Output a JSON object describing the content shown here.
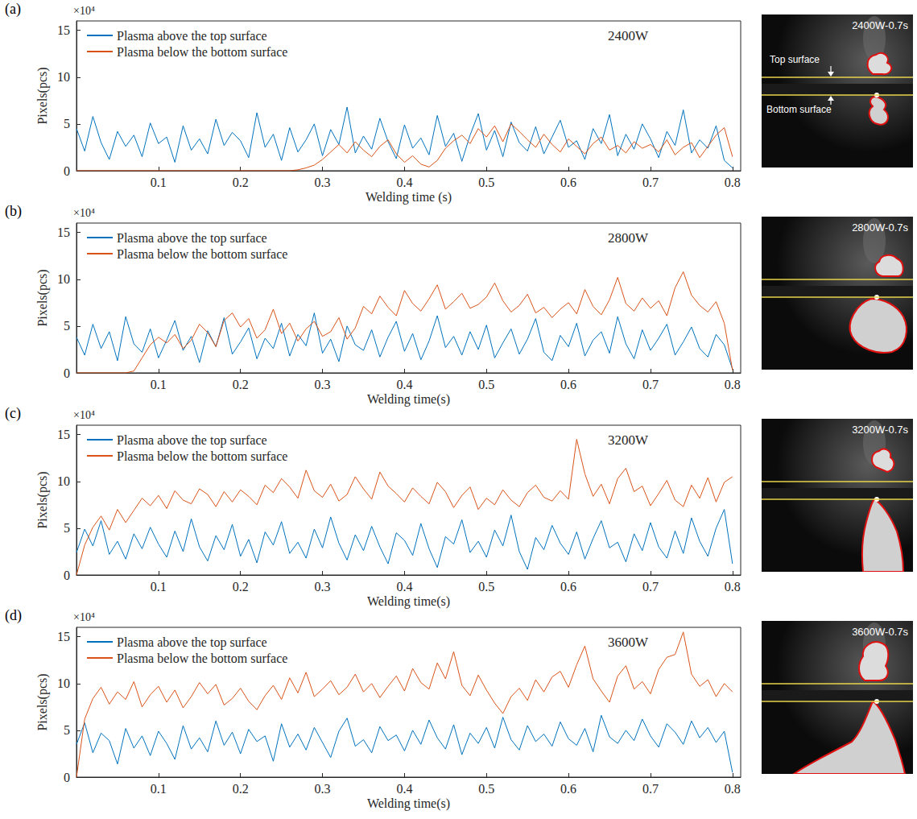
{
  "chart_data": [
    {
      "type": "line",
      "panel": "(a)",
      "annotation": "2400W",
      "y_scale_label": "×10⁴",
      "x_label": "Welding time (s)",
      "y_label": "Pixels(pcs)",
      "x": [
        0,
        0.01,
        0.02,
        0.03,
        0.04,
        0.05,
        0.06,
        0.07,
        0.08,
        0.09,
        0.1,
        0.11,
        0.12,
        0.13,
        0.14,
        0.15,
        0.16,
        0.17,
        0.18,
        0.19,
        0.2,
        0.21,
        0.22,
        0.23,
        0.24,
        0.25,
        0.26,
        0.27,
        0.28,
        0.29,
        0.3,
        0.31,
        0.32,
        0.33,
        0.34,
        0.35,
        0.36,
        0.37,
        0.38,
        0.39,
        0.4,
        0.41,
        0.42,
        0.43,
        0.44,
        0.45,
        0.46,
        0.47,
        0.48,
        0.49,
        0.5,
        0.51,
        0.52,
        0.53,
        0.54,
        0.55,
        0.56,
        0.57,
        0.58,
        0.59,
        0.6,
        0.61,
        0.62,
        0.63,
        0.64,
        0.65,
        0.66,
        0.67,
        0.68,
        0.69,
        0.7,
        0.71,
        0.72,
        0.73,
        0.74,
        0.75,
        0.76,
        0.77,
        0.78,
        0.79,
        0.8
      ],
      "series": [
        {
          "name": "Plasma above the top surface",
          "color": "#0072bd",
          "values": [
            4.5,
            2.1,
            5.8,
            3.0,
            1.2,
            4.2,
            2.6,
            3.8,
            1.5,
            5.1,
            2.9,
            3.6,
            0.9,
            4.8,
            2.2,
            3.4,
            1.8,
            5.5,
            2.7,
            4.1,
            3.2,
            1.4,
            6.2,
            2.5,
            3.9,
            1.1,
            4.6,
            2.0,
            3.3,
            5.0,
            1.6,
            4.4,
            2.8,
            6.8,
            1.9,
            3.7,
            2.3,
            5.6,
            3.1,
            1.3,
            4.9,
            2.4,
            3.5,
            1.7,
            5.9,
            2.6,
            4.0,
            1.0,
            3.8,
            6.1,
            2.2,
            4.3,
            1.5,
            5.2,
            3.0,
            2.1,
            4.7,
            1.8,
            3.6,
            5.4,
            2.5,
            3.2,
            1.2,
            4.5,
            2.9,
            6.0,
            1.6,
            3.9,
            2.3,
            5.0,
            3.4,
            1.4,
            4.2,
            2.7,
            6.5,
            1.9,
            3.3,
            2.4,
            4.8,
            1.1,
            0.3
          ]
        },
        {
          "name": "Plasma below the bottom surface",
          "color": "#d95319",
          "values": [
            0,
            0,
            0,
            0,
            0,
            0,
            0,
            0,
            0,
            0,
            0,
            0,
            0,
            0,
            0,
            0,
            0,
            0,
            0,
            0,
            0,
            0,
            0,
            0,
            0,
            0,
            0,
            0.1,
            0.3,
            0.6,
            1.2,
            2.0,
            2.8,
            1.9,
            3.1,
            2.2,
            1.5,
            2.6,
            3.3,
            1.8,
            0.9,
            1.6,
            0.7,
            0.4,
            1.1,
            2.4,
            3.2,
            3.8,
            2.9,
            4.5,
            3.6,
            4.8,
            3.1,
            5.0,
            4.2,
            3.3,
            2.5,
            3.9,
            2.8,
            2.0,
            3.4,
            2.6,
            1.8,
            2.9,
            3.6,
            2.2,
            2.7,
            1.9,
            3.1,
            2.4,
            2.8,
            2.0,
            3.3,
            1.7,
            2.5,
            3.0,
            1.4,
            2.6,
            3.8,
            4.6,
            1.5
          ]
        }
      ],
      "xlim": [
        0,
        0.81
      ],
      "xticks": [
        0.1,
        0.2,
        0.3,
        0.4,
        0.5,
        0.6,
        0.7,
        0.8
      ],
      "ylim": [
        0,
        16
      ],
      "yticks": [
        0,
        5,
        10,
        15
      ],
      "grid": false,
      "legend": "upper left",
      "photo": {
        "title": "2400W-0.7s",
        "labels": [
          "Top surface",
          "Bottom surface"
        ]
      }
    },
    {
      "type": "line",
      "panel": "(b)",
      "annotation": "2800W",
      "y_scale_label": "×10⁴",
      "x_label": "Welding time(s)",
      "y_label": "Pixels(pcs)",
      "x": [
        0,
        0.01,
        0.02,
        0.03,
        0.04,
        0.05,
        0.06,
        0.07,
        0.08,
        0.09,
        0.1,
        0.11,
        0.12,
        0.13,
        0.14,
        0.15,
        0.16,
        0.17,
        0.18,
        0.19,
        0.2,
        0.21,
        0.22,
        0.23,
        0.24,
        0.25,
        0.26,
        0.27,
        0.28,
        0.29,
        0.3,
        0.31,
        0.32,
        0.33,
        0.34,
        0.35,
        0.36,
        0.37,
        0.38,
        0.39,
        0.4,
        0.41,
        0.42,
        0.43,
        0.44,
        0.45,
        0.46,
        0.47,
        0.48,
        0.49,
        0.5,
        0.51,
        0.52,
        0.53,
        0.54,
        0.55,
        0.56,
        0.57,
        0.58,
        0.59,
        0.6,
        0.61,
        0.62,
        0.63,
        0.64,
        0.65,
        0.66,
        0.67,
        0.68,
        0.69,
        0.7,
        0.71,
        0.72,
        0.73,
        0.74,
        0.75,
        0.76,
        0.77,
        0.78,
        0.79,
        0.8
      ],
      "series": [
        {
          "name": "Plasma above the top surface",
          "color": "#0072bd",
          "values": [
            3.8,
            1.9,
            5.2,
            2.6,
            4.4,
            1.3,
            6.0,
            3.1,
            2.2,
            4.7,
            1.6,
            3.5,
            5.6,
            2.4,
            3.9,
            1.1,
            4.5,
            2.8,
            5.9,
            2.0,
            3.3,
            4.8,
            1.5,
            3.7,
            2.6,
            5.3,
            1.8,
            4.1,
            2.9,
            6.4,
            2.1,
            3.6,
            1.2,
            5.0,
            3.0,
            2.4,
            4.6,
            1.7,
            3.8,
            5.5,
            2.3,
            4.2,
            1.4,
            3.4,
            6.1,
            2.7,
            3.9,
            1.9,
            4.4,
            2.5,
            5.1,
            1.6,
            3.2,
            4.7,
            2.0,
            3.6,
            5.8,
            2.2,
            1.3,
            4.0,
            2.8,
            5.3,
            1.8,
            3.5,
            4.4,
            2.1,
            6.0,
            3.1,
            1.5,
            4.6,
            2.4,
            3.7,
            5.2,
            1.9,
            3.3,
            4.9,
            2.6,
            1.7,
            4.1,
            3.0,
            0.4
          ]
        },
        {
          "name": "Plasma below the bottom surface",
          "color": "#d95319",
          "values": [
            0,
            0,
            0,
            0,
            0,
            0,
            0,
            0.2,
            1.6,
            3.0,
            3.8,
            3.2,
            4.1,
            2.6,
            3.5,
            5.2,
            4.3,
            2.8,
            5.6,
            6.4,
            4.9,
            5.8,
            3.7,
            4.6,
            6.8,
            4.2,
            5.3,
            3.4,
            4.7,
            5.5,
            3.9,
            4.4,
            5.9,
            3.6,
            4.8,
            7.1,
            6.3,
            8.2,
            7.0,
            6.1,
            8.8,
            7.4,
            6.6,
            7.9,
            9.4,
            6.8,
            7.6,
            8.5,
            6.9,
            7.3,
            8.1,
            9.6,
            7.7,
            6.5,
            7.2,
            8.4,
            6.4,
            7.0,
            5.9,
            6.8,
            7.5,
            6.3,
            8.9,
            7.1,
            6.2,
            7.8,
            10.2,
            7.4,
            6.6,
            8.0,
            6.9,
            7.7,
            6.1,
            9.1,
            10.8,
            8.3,
            7.2,
            6.5,
            7.6,
            5.3,
            0.3
          ]
        }
      ],
      "xlim": [
        0,
        0.81
      ],
      "xticks": [
        0.1,
        0.2,
        0.3,
        0.4,
        0.5,
        0.6,
        0.7,
        0.8
      ],
      "ylim": [
        0,
        16
      ],
      "yticks": [
        0,
        5,
        10,
        15
      ],
      "grid": false,
      "legend": "upper left",
      "photo": {
        "title": "2800W-0.7s",
        "labels": []
      }
    },
    {
      "type": "line",
      "panel": "(c)",
      "annotation": "3200W",
      "y_scale_label": "×10⁴",
      "x_label": "Welding time(s)",
      "y_label": "Pixels(pcs)",
      "x": [
        0,
        0.01,
        0.02,
        0.03,
        0.04,
        0.05,
        0.06,
        0.07,
        0.08,
        0.09,
        0.1,
        0.11,
        0.12,
        0.13,
        0.14,
        0.15,
        0.16,
        0.17,
        0.18,
        0.19,
        0.2,
        0.21,
        0.22,
        0.23,
        0.24,
        0.25,
        0.26,
        0.27,
        0.28,
        0.29,
        0.3,
        0.31,
        0.32,
        0.33,
        0.34,
        0.35,
        0.36,
        0.37,
        0.38,
        0.39,
        0.4,
        0.41,
        0.42,
        0.43,
        0.44,
        0.45,
        0.46,
        0.47,
        0.48,
        0.49,
        0.5,
        0.51,
        0.52,
        0.53,
        0.54,
        0.55,
        0.56,
        0.57,
        0.58,
        0.59,
        0.6,
        0.61,
        0.62,
        0.63,
        0.64,
        0.65,
        0.66,
        0.67,
        0.68,
        0.69,
        0.7,
        0.71,
        0.72,
        0.73,
        0.74,
        0.75,
        0.76,
        0.77,
        0.78,
        0.79,
        0.8
      ],
      "series": [
        {
          "name": "Plasma above the top surface",
          "color": "#0072bd",
          "values": [
            2.4,
            4.9,
            3.1,
            5.8,
            2.2,
            3.6,
            1.7,
            4.4,
            2.8,
            5.1,
            3.3,
            1.9,
            4.7,
            2.5,
            6.0,
            3.0,
            1.5,
            4.2,
            2.7,
            5.4,
            2.0,
            3.8,
            1.3,
            4.6,
            3.2,
            5.7,
            2.3,
            3.5,
            1.8,
            4.9,
            2.9,
            6.2,
            3.4,
            1.6,
            4.3,
            2.6,
            5.2,
            3.0,
            1.2,
            4.5,
            3.7,
            2.1,
            5.5,
            2.8,
            0.8,
            4.1,
            3.3,
            5.9,
            2.4,
            3.6,
            1.9,
            4.8,
            3.1,
            6.4,
            2.5,
            0.6,
            4.0,
            2.7,
            5.3,
            3.4,
            2.2,
            4.6,
            1.7,
            3.9,
            5.8,
            2.9,
            3.5,
            1.4,
            4.4,
            2.6,
            5.6,
            3.0,
            1.8,
            4.7,
            2.3,
            6.1,
            3.6,
            2.0,
            5.0,
            7.0,
            1.2
          ]
        },
        {
          "name": "Plasma below the bottom surface",
          "color": "#d95319",
          "values": [
            0,
            3.2,
            5.1,
            6.3,
            4.8,
            7.0,
            5.6,
            6.9,
            8.2,
            7.4,
            8.5,
            7.1,
            9.0,
            8.0,
            7.6,
            9.2,
            8.6,
            7.3,
            8.9,
            7.8,
            9.1,
            8.4,
            7.5,
            9.6,
            8.8,
            10.3,
            9.4,
            8.2,
            11.2,
            9.0,
            8.3,
            9.7,
            7.9,
            8.6,
            10.5,
            9.2,
            8.1,
            11.0,
            9.5,
            8.7,
            7.8,
            9.3,
            8.4,
            7.6,
            9.9,
            8.9,
            7.2,
            8.5,
            9.4,
            7.0,
            8.2,
            7.5,
            9.1,
            8.0,
            7.3,
            8.8,
            9.6,
            8.3,
            7.9,
            9.0,
            8.1,
            14.5,
            10.8,
            8.4,
            9.7,
            7.6,
            10.3,
            11.4,
            8.9,
            9.5,
            7.4,
            8.7,
            10.1,
            8.0,
            7.3,
            9.6,
            8.2,
            10.4,
            7.8,
            9.9,
            10.5
          ]
        }
      ],
      "xlim": [
        0,
        0.81
      ],
      "xticks": [
        0.1,
        0.2,
        0.3,
        0.4,
        0.5,
        0.6,
        0.7,
        0.8
      ],
      "ylim": [
        0,
        16
      ],
      "yticks": [
        0,
        5,
        10,
        15
      ],
      "grid": false,
      "legend": "upper left",
      "photo": {
        "title": "3200W-0.7s",
        "labels": []
      }
    },
    {
      "type": "line",
      "panel": "(d)",
      "annotation": "3600W",
      "y_scale_label": "×10⁴",
      "x_label": "Welding time(s)",
      "y_label": "Pixels(pcs)",
      "x": [
        0,
        0.01,
        0.02,
        0.03,
        0.04,
        0.05,
        0.06,
        0.07,
        0.08,
        0.09,
        0.1,
        0.11,
        0.12,
        0.13,
        0.14,
        0.15,
        0.16,
        0.17,
        0.18,
        0.19,
        0.2,
        0.21,
        0.22,
        0.23,
        0.24,
        0.25,
        0.26,
        0.27,
        0.28,
        0.29,
        0.3,
        0.31,
        0.32,
        0.33,
        0.34,
        0.35,
        0.36,
        0.37,
        0.38,
        0.39,
        0.4,
        0.41,
        0.42,
        0.43,
        0.44,
        0.45,
        0.46,
        0.47,
        0.48,
        0.49,
        0.5,
        0.51,
        0.52,
        0.53,
        0.54,
        0.55,
        0.56,
        0.57,
        0.58,
        0.59,
        0.6,
        0.61,
        0.62,
        0.63,
        0.64,
        0.65,
        0.66,
        0.67,
        0.68,
        0.69,
        0.7,
        0.71,
        0.72,
        0.73,
        0.74,
        0.75,
        0.76,
        0.77,
        0.78,
        0.79,
        0.8
      ],
      "series": [
        {
          "name": "Plasma above the top surface",
          "color": "#0072bd",
          "values": [
            3.5,
            5.8,
            2.6,
            4.7,
            3.9,
            1.4,
            5.2,
            3.1,
            4.4,
            2.3,
            4.9,
            3.6,
            1.9,
            5.5,
            3.0,
            4.2,
            2.7,
            6.0,
            3.4,
            4.8,
            2.5,
            5.1,
            3.8,
            4.4,
            1.7,
            5.7,
            3.2,
            4.6,
            2.9,
            5.3,
            3.7,
            2.1,
            4.9,
            6.3,
            3.3,
            4.0,
            2.6,
            5.4,
            3.9,
            4.5,
            2.8,
            5.0,
            3.5,
            6.1,
            4.2,
            3.0,
            5.6,
            2.4,
            4.7,
            3.6,
            5.3,
            3.1,
            6.4,
            4.0,
            2.9,
            5.5,
            3.8,
            4.6,
            3.3,
            5.9,
            4.1,
            3.4,
            5.2,
            2.7,
            6.6,
            4.3,
            3.6,
            5.0,
            3.9,
            6.2,
            4.4,
            3.2,
            5.7,
            4.8,
            3.5,
            6.0,
            4.2,
            5.3,
            3.7,
            4.9,
            0.5
          ]
        },
        {
          "name": "Plasma below the bottom surface",
          "color": "#d95319",
          "values": [
            0,
            6.2,
            8.4,
            9.6,
            7.8,
            9.1,
            8.3,
            10.2,
            7.5,
            8.8,
            9.7,
            8.0,
            9.3,
            7.4,
            8.6,
            10.1,
            8.9,
            9.9,
            7.7,
            8.4,
            9.5,
            8.1,
            7.2,
            8.7,
            9.8,
            8.3,
            10.6,
            9.0,
            11.2,
            8.6,
            9.4,
            10.3,
            8.8,
            9.6,
            11.0,
            9.1,
            10.0,
            8.5,
            9.7,
            10.8,
            9.2,
            11.6,
            10.1,
            9.4,
            12.2,
            10.5,
            13.4,
            9.8,
            8.7,
            10.9,
            9.3,
            7.9,
            6.8,
            8.6,
            9.5,
            8.2,
            10.4,
            9.1,
            10.7,
            11.3,
            9.6,
            12.0,
            14.0,
            10.5,
            9.2,
            8.0,
            10.8,
            11.9,
            9.4,
            10.2,
            8.9,
            11.5,
            12.8,
            13.1,
            15.5,
            11.0,
            9.7,
            10.4,
            8.6,
            10.0,
            9.1
          ]
        }
      ],
      "xlim": [
        0,
        0.81
      ],
      "xticks": [
        0.1,
        0.2,
        0.3,
        0.4,
        0.5,
        0.6,
        0.7,
        0.8
      ],
      "ylim": [
        0,
        16
      ],
      "yticks": [
        0,
        5,
        10,
        15
      ],
      "grid": false,
      "legend": "upper left",
      "photo": {
        "title": "3600W-0.7s",
        "labels": []
      }
    }
  ]
}
